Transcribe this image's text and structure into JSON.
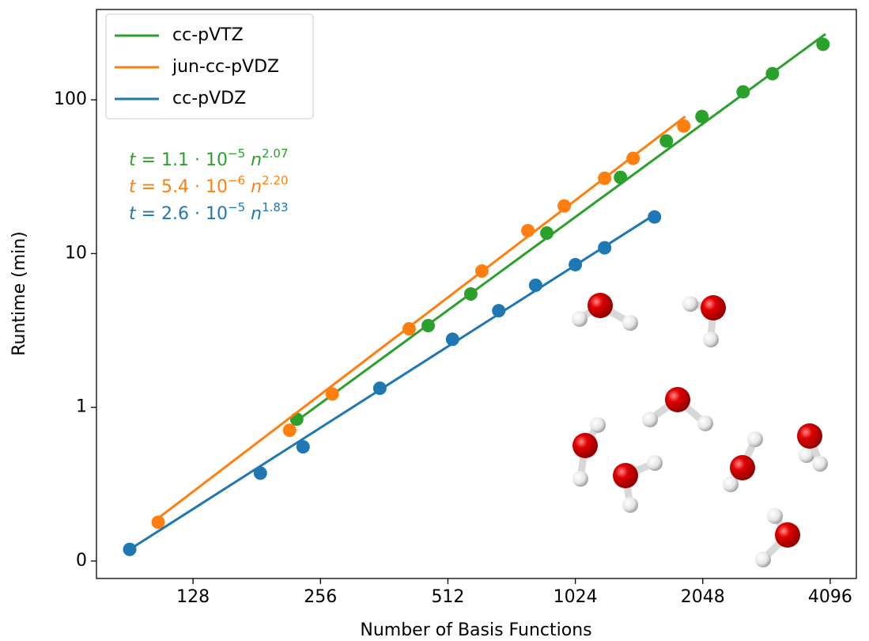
{
  "chart_data": {
    "type": "scatter",
    "xlabel": "Number of Basis Functions",
    "ylabel": "Runtime (min)",
    "xscale": "log2",
    "yscale": "log",
    "xlim": [
      75.7,
      4722
    ],
    "ylim": [
      0.077,
      387
    ],
    "xticks": [
      128,
      256,
      512,
      1024,
      2048,
      4096
    ],
    "yticks": [
      {
        "value": 0.1,
        "label": "0"
      },
      1,
      10,
      100
    ],
    "legend": "upper left",
    "series": [
      {
        "name": "cc-pVTZ",
        "color": "#2ca02c",
        "x": [
          225,
          460,
          580,
          877,
          1309,
          1680,
          2039,
          2551,
          2992,
          3939
        ],
        "values": [
          0.837,
          3.4,
          5.46,
          13.6,
          31.3,
          54.0,
          77.9,
          112.7,
          148,
          229.6
        ],
        "fit_x": [
          225,
          3992
        ],
        "fit_values": [
          0.817,
          268
        ]
      },
      {
        "name": "jun-cc-pVDZ",
        "color": "#ff7f0e",
        "x": [
          105.9,
          216.5,
          273,
          414.7,
          616,
          791,
          964,
          1201,
          1402,
          1847
        ],
        "values": [
          0.179,
          0.709,
          1.22,
          3.24,
          7.7,
          14.1,
          20.4,
          30.9,
          41.6,
          67.6
        ],
        "fit_x": [
          105.9,
          1862
        ],
        "fit_values": [
          0.19,
          77.9
        ]
      },
      {
        "name": "cc-pVDZ",
        "color": "#1f77b4",
        "x": [
          90.7,
          184.6,
          232.9,
          353.6,
          525,
          675,
          825,
          1024,
          1201,
          1575
        ],
        "values": [
          0.119,
          0.373,
          0.553,
          1.33,
          2.77,
          4.25,
          6.22,
          8.47,
          10.9,
          17.3
        ],
        "fit_x": [
          90.7,
          1575
        ],
        "fit_values": [
          0.119,
          17.9
        ]
      }
    ],
    "annotations": [
      {
        "lhs": "t",
        "coef": " = 1.1 · 10",
        "exp": "−5",
        "var": " n",
        "power": "2.07",
        "color": "#2ca02c"
      },
      {
        "lhs": "t",
        "coef": " = 5.4 · 10",
        "exp": "−6",
        "var": " n",
        "power": "2.20",
        "color": "#ff7f0e"
      },
      {
        "lhs": "t",
        "coef": " = 2.6 · 10",
        "exp": "−5",
        "var": " n",
        "power": "1.83",
        "color": "#1f77b4"
      }
    ]
  }
}
